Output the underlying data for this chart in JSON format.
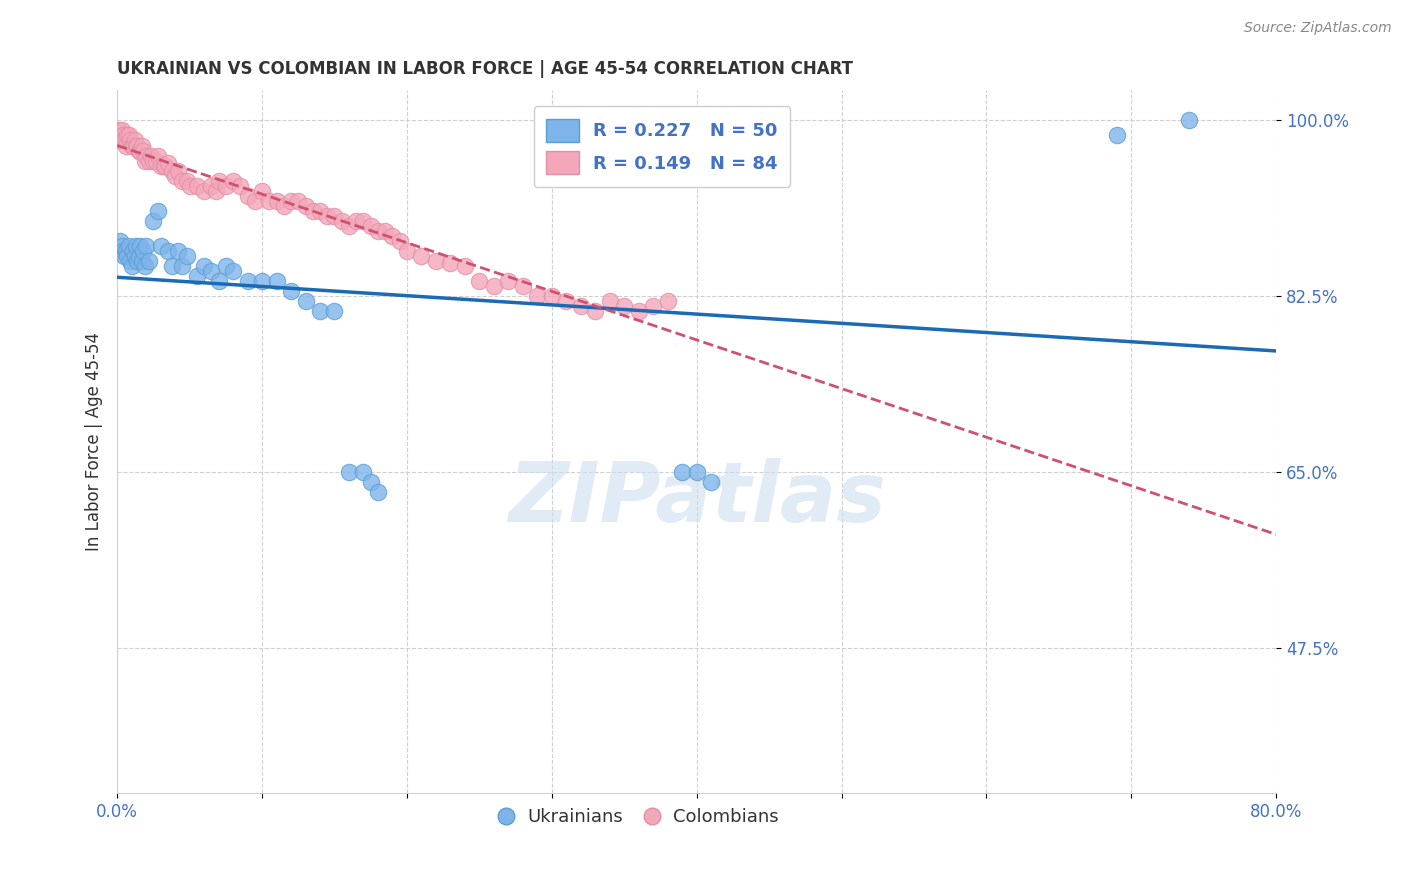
{
  "title": "UKRAINIAN VS COLOMBIAN IN LABOR FORCE | AGE 45-54 CORRELATION CHART",
  "source": "Source: ZipAtlas.com",
  "ylabel": "In Labor Force | Age 45-54",
  "xlim": [
    0.0,
    0.8
  ],
  "ylim": [
    0.33,
    1.03
  ],
  "yticks": [
    0.475,
    0.65,
    0.825,
    1.0
  ],
  "ytick_labels": [
    "47.5%",
    "65.0%",
    "82.5%",
    "100.0%"
  ],
  "xticks": [
    0.0,
    0.1,
    0.2,
    0.3,
    0.4,
    0.5,
    0.6,
    0.7,
    0.8
  ],
  "blue_r": 0.227,
  "blue_n": 50,
  "pink_r": 0.149,
  "pink_n": 84,
  "blue_scatter_x": [
    0.002,
    0.003,
    0.004,
    0.005,
    0.006,
    0.007,
    0.008,
    0.009,
    0.01,
    0.011,
    0.012,
    0.013,
    0.014,
    0.015,
    0.016,
    0.017,
    0.018,
    0.019,
    0.02,
    0.022,
    0.025,
    0.028,
    0.03,
    0.035,
    0.038,
    0.042,
    0.045,
    0.048,
    0.055,
    0.06,
    0.065,
    0.07,
    0.075,
    0.08,
    0.09,
    0.1,
    0.11,
    0.12,
    0.13,
    0.14,
    0.15,
    0.16,
    0.17,
    0.175,
    0.18,
    0.39,
    0.4,
    0.41,
    0.69,
    0.74
  ],
  "blue_scatter_y": [
    0.88,
    0.875,
    0.87,
    0.865,
    0.87,
    0.865,
    0.875,
    0.86,
    0.855,
    0.87,
    0.865,
    0.875,
    0.86,
    0.865,
    0.875,
    0.86,
    0.87,
    0.855,
    0.875,
    0.86,
    0.9,
    0.91,
    0.875,
    0.87,
    0.855,
    0.87,
    0.855,
    0.865,
    0.845,
    0.855,
    0.85,
    0.84,
    0.855,
    0.85,
    0.84,
    0.84,
    0.84,
    0.83,
    0.82,
    0.81,
    0.81,
    0.65,
    0.65,
    0.64,
    0.63,
    0.65,
    0.65,
    0.64,
    0.985,
    1.0
  ],
  "pink_scatter_x": [
    0.001,
    0.002,
    0.003,
    0.004,
    0.005,
    0.006,
    0.007,
    0.008,
    0.009,
    0.01,
    0.011,
    0.012,
    0.013,
    0.014,
    0.015,
    0.016,
    0.017,
    0.018,
    0.019,
    0.02,
    0.022,
    0.023,
    0.025,
    0.027,
    0.028,
    0.03,
    0.032,
    0.033,
    0.035,
    0.038,
    0.04,
    0.042,
    0.045,
    0.048,
    0.05,
    0.055,
    0.06,
    0.065,
    0.068,
    0.07,
    0.075,
    0.08,
    0.085,
    0.09,
    0.095,
    0.1,
    0.105,
    0.11,
    0.115,
    0.12,
    0.125,
    0.13,
    0.135,
    0.14,
    0.145,
    0.15,
    0.155,
    0.16,
    0.165,
    0.17,
    0.175,
    0.18,
    0.185,
    0.19,
    0.195,
    0.2,
    0.21,
    0.22,
    0.23,
    0.24,
    0.25,
    0.26,
    0.27,
    0.28,
    0.29,
    0.3,
    0.31,
    0.32,
    0.33,
    0.34,
    0.35,
    0.36,
    0.37,
    0.38
  ],
  "pink_scatter_y": [
    0.99,
    0.98,
    0.99,
    0.985,
    0.98,
    0.975,
    0.985,
    0.985,
    0.98,
    0.975,
    0.975,
    0.98,
    0.975,
    0.975,
    0.97,
    0.97,
    0.975,
    0.97,
    0.96,
    0.965,
    0.96,
    0.965,
    0.96,
    0.96,
    0.965,
    0.955,
    0.955,
    0.955,
    0.958,
    0.95,
    0.945,
    0.95,
    0.94,
    0.94,
    0.935,
    0.935,
    0.93,
    0.935,
    0.93,
    0.94,
    0.935,
    0.94,
    0.935,
    0.925,
    0.92,
    0.93,
    0.92,
    0.92,
    0.915,
    0.92,
    0.92,
    0.915,
    0.91,
    0.91,
    0.905,
    0.905,
    0.9,
    0.895,
    0.9,
    0.9,
    0.895,
    0.89,
    0.89,
    0.885,
    0.88,
    0.87,
    0.865,
    0.86,
    0.858,
    0.855,
    0.84,
    0.835,
    0.84,
    0.835,
    0.825,
    0.825,
    0.82,
    0.815,
    0.81,
    0.82,
    0.815,
    0.81,
    0.815,
    0.82
  ],
  "blue_line_color": "#1a6ab5",
  "pink_line_color": "#d05070",
  "scatter_blue_color": "#7eb4ea",
  "scatter_pink_color": "#f4a7b9",
  "scatter_blue_edge": "#5a9fd4",
  "scatter_pink_edge": "#e090a8",
  "watermark_color": "#ccdff0",
  "background_color": "#ffffff",
  "title_color": "#333333",
  "source_color": "#888888",
  "axis_color": "#4472c4",
  "grid_color": "#d0d0d0"
}
